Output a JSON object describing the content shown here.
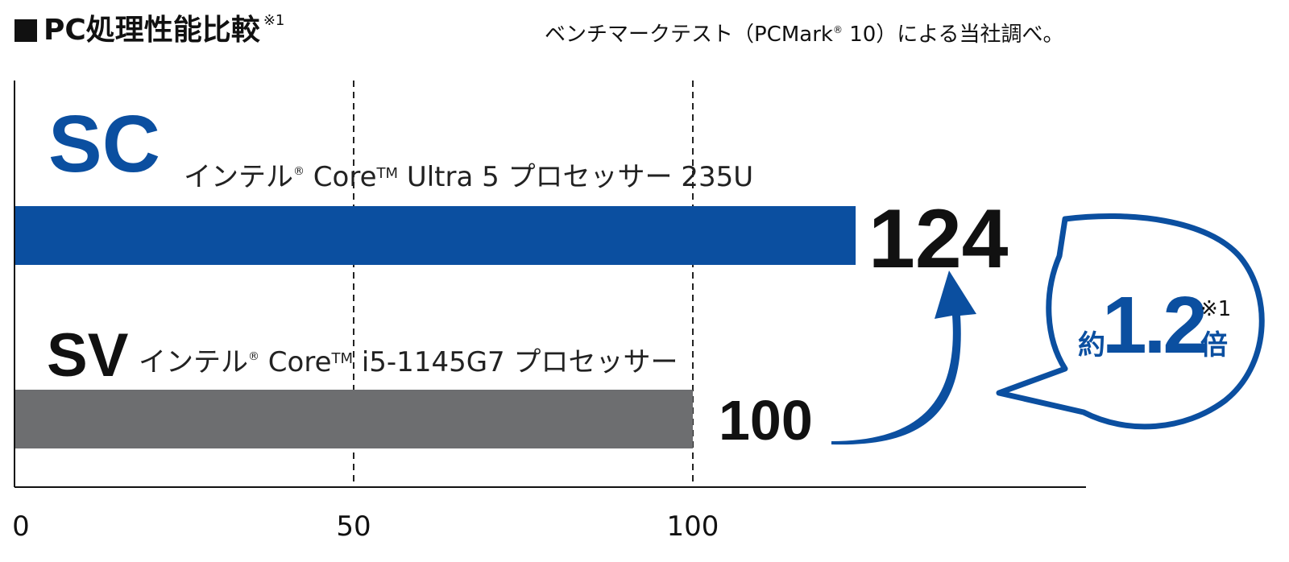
{
  "title": "PC処理性能比較",
  "title_note": "※1",
  "source_prefix": "ベンチマークテスト（PCMark",
  "source_reg": "®",
  "source_suffix": " 10）による当社調べ。",
  "chart_data": {
    "type": "bar",
    "orientation": "horizontal",
    "categories": [
      {
        "code": "SC",
        "desc_prefix": "インテル",
        "desc_reg": "®",
        "desc_core": " Core",
        "desc_tm": "TM",
        "desc_suffix": " Ultra 5 プロセッサー 235U"
      },
      {
        "code": "SV",
        "desc_prefix": "インテル",
        "desc_reg": "®",
        "desc_core": " Core",
        "desc_tm": "TM",
        "desc_suffix": " i5-1145G7 プロセッサー"
      }
    ],
    "values": [
      124,
      100
    ],
    "value_labels": [
      "124",
      "100"
    ],
    "xlim": [
      0,
      158
    ],
    "xticks": [
      0,
      50,
      100
    ],
    "xtick_labels": [
      "0",
      "50",
      "100"
    ],
    "gridlines": [
      50,
      100
    ],
    "grid_style": "dashed",
    "colors": {
      "SC": "#0b4fa0",
      "SV": "#6d6e70",
      "accent": "#0b4fa0"
    },
    "callout": {
      "prefix": "約",
      "value": "1.2",
      "suffix": "倍",
      "note": "※1"
    }
  }
}
